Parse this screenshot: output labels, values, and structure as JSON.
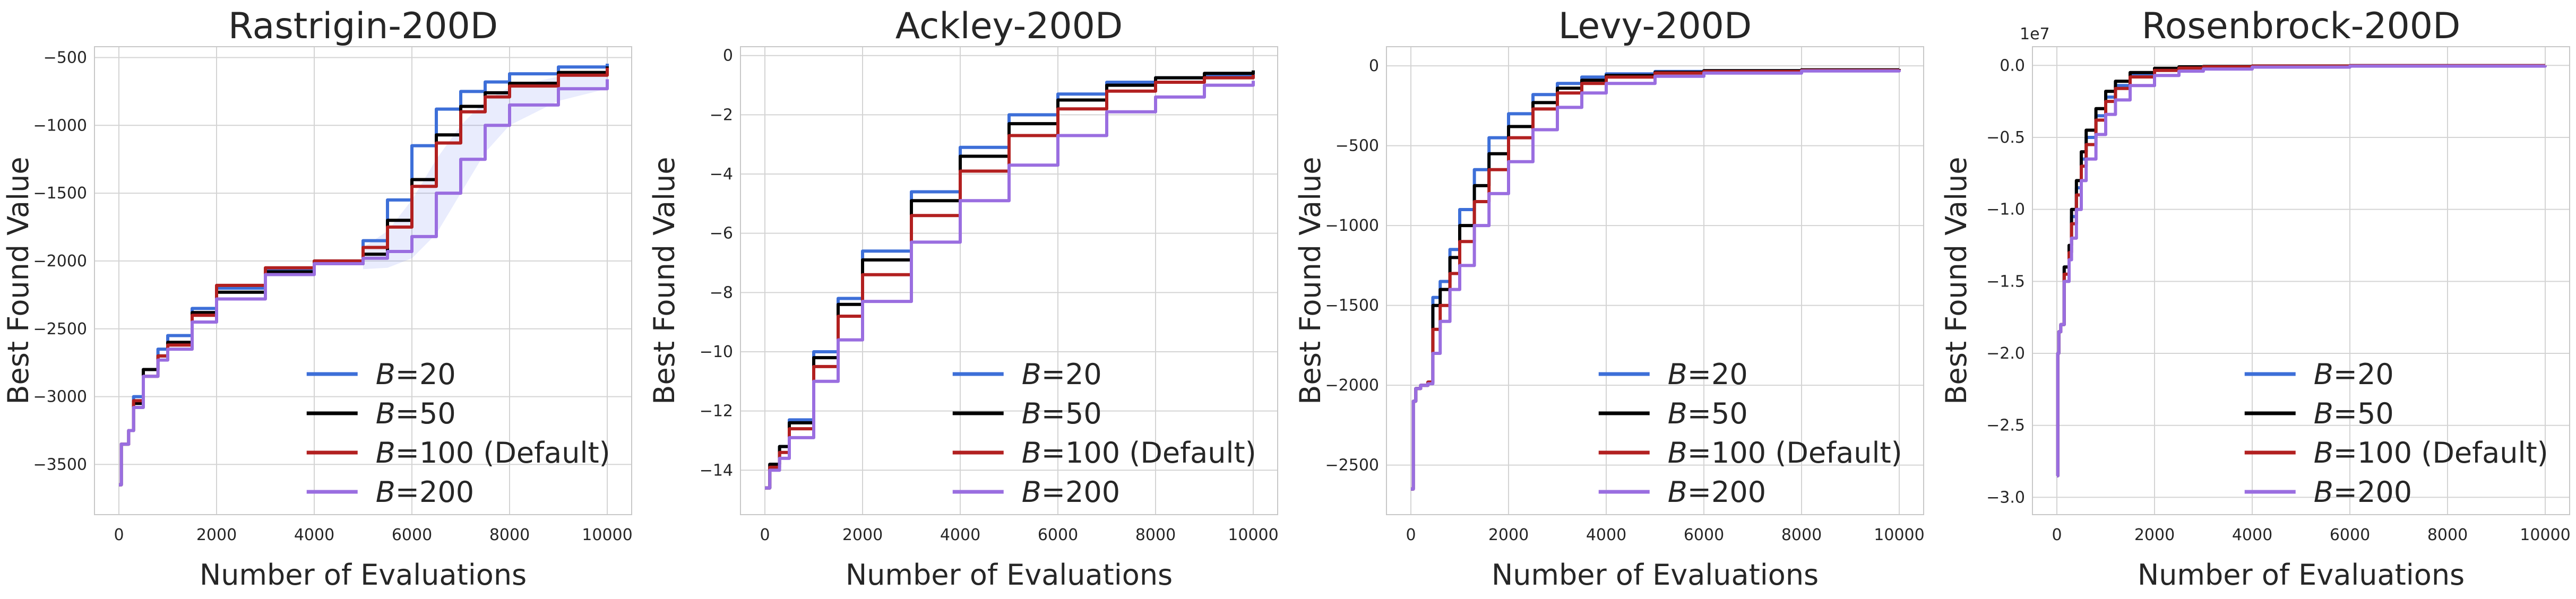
{
  "colors": {
    "B20": "#3d6fd8",
    "B50": "#000000",
    "B100": "#b22020",
    "B200": "#9a6ee0",
    "band": "#6d82f0",
    "grid": "#d4d4d4",
    "frame": "#c8c8c8"
  },
  "legend": [
    {
      "key": "B20",
      "var": "B",
      "text": "=20"
    },
    {
      "key": "B50",
      "var": "B",
      "text": "=50"
    },
    {
      "key": "B100",
      "var": "B",
      "text": "=100 (Default)"
    },
    {
      "key": "B200",
      "var": "B",
      "text": "=200"
    }
  ],
  "chart_data": [
    {
      "type": "line",
      "title": "Rastrigin-200D",
      "xlabel": "Number of Evaluations",
      "ylabel": "Best Found Value",
      "xlim": [
        -500,
        10500
      ],
      "ylim": [
        -3870,
        -420
      ],
      "xticks": [
        0,
        2000,
        4000,
        6000,
        8000,
        10000
      ],
      "xtick_labels": [
        "0",
        "2000",
        "4000",
        "6000",
        "8000",
        "10000"
      ],
      "yticks": [
        -3500,
        -3000,
        -2500,
        -2000,
        -1500,
        -1000,
        -500
      ],
      "ytick_labels": [
        "−3500",
        "−3000",
        "−2500",
        "−2000",
        "−1500",
        "−1000",
        "−500"
      ],
      "offset_text": "",
      "legend_loc": "lower-right",
      "series": [
        {
          "name": "B=20",
          "key": "B20",
          "x": [
            0,
            50,
            200,
            300,
            500,
            800,
            1000,
            1500,
            2000,
            3000,
            4000,
            5000,
            5500,
            6000,
            6500,
            7000,
            7500,
            8000,
            9000,
            10000
          ],
          "y": [
            -3650,
            -3350,
            -3250,
            -3000,
            -2800,
            -2650,
            -2550,
            -2350,
            -2200,
            -2060,
            -2000,
            -1850,
            -1550,
            -1150,
            -880,
            -750,
            -680,
            -620,
            -570,
            -545
          ]
        },
        {
          "name": "B=50",
          "key": "B50",
          "x": [
            0,
            50,
            200,
            300,
            500,
            800,
            1000,
            1500,
            2000,
            3000,
            4000,
            5000,
            5500,
            6000,
            6500,
            7000,
            7500,
            8000,
            9000,
            10000
          ],
          "y": [
            -3650,
            -3350,
            -3250,
            -3050,
            -2800,
            -2700,
            -2600,
            -2380,
            -2230,
            -2080,
            -2020,
            -1950,
            -1700,
            -1400,
            -1070,
            -860,
            -760,
            -690,
            -610,
            -565
          ]
        },
        {
          "name": "B=100 (Default)",
          "key": "B100",
          "x": [
            0,
            50,
            200,
            300,
            500,
            800,
            1000,
            1500,
            2000,
            3000,
            4000,
            5000,
            5500,
            6000,
            6500,
            7000,
            7500,
            8000,
            9000,
            10000
          ],
          "y": [
            -3650,
            -3350,
            -3250,
            -3030,
            -2850,
            -2700,
            -2620,
            -2400,
            -2180,
            -2050,
            -2000,
            -1900,
            -1750,
            -1450,
            -1130,
            -900,
            -790,
            -710,
            -630,
            -575
          ]
        },
        {
          "name": "B=200",
          "key": "B200",
          "x": [
            0,
            50,
            200,
            300,
            500,
            800,
            1000,
            1500,
            2000,
            3000,
            4000,
            5000,
            5500,
            6000,
            6500,
            7000,
            7500,
            8000,
            9000,
            10000
          ],
          "y": [
            -3650,
            -3350,
            -3250,
            -3080,
            -2850,
            -2730,
            -2650,
            -2450,
            -2280,
            -2100,
            -2020,
            -1980,
            -1930,
            -1820,
            -1500,
            -1250,
            -1000,
            -850,
            -730,
            -660
          ]
        }
      ],
      "band": {
        "key": "B200",
        "x": [
          5000,
          5500,
          6000,
          6500,
          7000,
          7500,
          8000,
          9000,
          10000
        ],
        "lower": [
          -2060,
          -2050,
          -1980,
          -1800,
          -1500,
          -1200,
          -1000,
          -820,
          -730
        ],
        "upper": [
          -1900,
          -1780,
          -1550,
          -1250,
          -1000,
          -820,
          -720,
          -640,
          -600
        ]
      }
    },
    {
      "type": "line",
      "title": "Ackley-200D",
      "xlabel": "Number of Evaluations",
      "ylabel": "Best Found Value",
      "xlim": [
        -500,
        10500
      ],
      "ylim": [
        -15.5,
        0.3
      ],
      "xticks": [
        0,
        2000,
        4000,
        6000,
        8000,
        10000
      ],
      "xtick_labels": [
        "0",
        "2000",
        "4000",
        "6000",
        "8000",
        "10000"
      ],
      "yticks": [
        -14,
        -12,
        -10,
        -8,
        -6,
        -4,
        -2,
        0
      ],
      "ytick_labels": [
        "−14",
        "−12",
        "−10",
        "−8",
        "−6",
        "−4",
        "−2",
        "0"
      ],
      "offset_text": "",
      "legend_loc": "lower-right",
      "series": [
        {
          "name": "B=20",
          "key": "B20",
          "x": [
            0,
            100,
            300,
            500,
            1000,
            1500,
            2000,
            3000,
            4000,
            5000,
            6000,
            7000,
            8000,
            9000,
            10000
          ],
          "y": [
            -14.6,
            -13.8,
            -13.2,
            -12.3,
            -10.0,
            -8.2,
            -6.6,
            -4.6,
            -3.1,
            -2.0,
            -1.3,
            -0.9,
            -0.75,
            -0.65,
            -0.6
          ]
        },
        {
          "name": "B=50",
          "key": "B50",
          "x": [
            0,
            100,
            300,
            500,
            1000,
            1500,
            2000,
            3000,
            4000,
            5000,
            6000,
            7000,
            8000,
            9000,
            10000
          ],
          "y": [
            -14.6,
            -13.8,
            -13.2,
            -12.4,
            -10.2,
            -8.4,
            -6.9,
            -4.9,
            -3.4,
            -2.3,
            -1.5,
            -1.0,
            -0.75,
            -0.6,
            -0.5
          ]
        },
        {
          "name": "B=100 (Default)",
          "key": "B100",
          "x": [
            0,
            100,
            300,
            500,
            1000,
            1500,
            2000,
            3000,
            4000,
            5000,
            6000,
            7000,
            8000,
            9000,
            10000
          ],
          "y": [
            -14.6,
            -13.9,
            -13.4,
            -12.6,
            -10.5,
            -8.8,
            -7.4,
            -5.4,
            -3.9,
            -2.7,
            -1.8,
            -1.2,
            -0.9,
            -0.75,
            -0.65
          ]
        },
        {
          "name": "B=200",
          "key": "B200",
          "x": [
            0,
            100,
            300,
            500,
            1000,
            1500,
            2000,
            3000,
            4000,
            5000,
            6000,
            7000,
            8000,
            9000,
            10000
          ],
          "y": [
            -14.6,
            -14.0,
            -13.6,
            -12.9,
            -11.0,
            -9.6,
            -8.3,
            -6.3,
            -4.9,
            -3.7,
            -2.7,
            -1.9,
            -1.4,
            -1.0,
            -0.85
          ]
        }
      ]
    },
    {
      "type": "line",
      "title": "Levy-200D",
      "xlabel": "Number of Evaluations",
      "ylabel": "Best Found Value",
      "xlim": [
        -500,
        10500
      ],
      "ylim": [
        -2810,
        120
      ],
      "xticks": [
        0,
        2000,
        4000,
        6000,
        8000,
        10000
      ],
      "xtick_labels": [
        "0",
        "2000",
        "4000",
        "6000",
        "8000",
        "10000"
      ],
      "yticks": [
        -2500,
        -2000,
        -1500,
        -1000,
        -500,
        0
      ],
      "ytick_labels": [
        "−2500",
        "−2000",
        "−1500",
        "−1000",
        "−500",
        "0"
      ],
      "offset_text": "",
      "legend_loc": "lower-right",
      "series": [
        {
          "name": "B=20",
          "key": "B20",
          "x": [
            0,
            50,
            100,
            200,
            350,
            450,
            600,
            800,
            1000,
            1300,
            1600,
            2000,
            2500,
            3000,
            3500,
            4000,
            5000,
            6000,
            8000,
            10000
          ],
          "y": [
            -2650,
            -2100,
            -2020,
            -2000,
            -1980,
            -1450,
            -1350,
            -1150,
            -900,
            -650,
            -450,
            -300,
            -180,
            -110,
            -70,
            -50,
            -35,
            -30,
            -25,
            -20
          ]
        },
        {
          "name": "B=50",
          "key": "B50",
          "x": [
            0,
            50,
            100,
            200,
            350,
            450,
            600,
            800,
            1000,
            1300,
            1600,
            2000,
            2500,
            3000,
            3500,
            4000,
            5000,
            6000,
            8000,
            10000
          ],
          "y": [
            -2650,
            -2100,
            -2020,
            -2000,
            -1980,
            -1500,
            -1400,
            -1200,
            -1000,
            -750,
            -550,
            -380,
            -230,
            -140,
            -90,
            -60,
            -40,
            -30,
            -25,
            -20
          ]
        },
        {
          "name": "B=100 (Default)",
          "key": "B100",
          "x": [
            0,
            50,
            100,
            200,
            350,
            450,
            600,
            800,
            1000,
            1300,
            1600,
            2000,
            2500,
            3000,
            3500,
            4000,
            5000,
            6000,
            8000,
            10000
          ],
          "y": [
            -2650,
            -2100,
            -2020,
            -2000,
            -1980,
            -1650,
            -1500,
            -1300,
            -1100,
            -850,
            -650,
            -450,
            -270,
            -170,
            -110,
            -70,
            -45,
            -35,
            -28,
            -22
          ]
        },
        {
          "name": "B=200",
          "key": "B200",
          "x": [
            0,
            50,
            100,
            200,
            350,
            450,
            600,
            800,
            1000,
            1300,
            1600,
            2000,
            2500,
            3000,
            3500,
            4000,
            5000,
            6000,
            8000,
            10000
          ],
          "y": [
            -2650,
            -2100,
            -2020,
            -2000,
            -1990,
            -1800,
            -1600,
            -1400,
            -1250,
            -1000,
            -800,
            -600,
            -400,
            -260,
            -170,
            -110,
            -65,
            -45,
            -32,
            -25
          ]
        }
      ]
    },
    {
      "type": "line",
      "title": "Rosenbrock-200D",
      "xlabel": "Number of Evaluations",
      "ylabel": "Best Found Value",
      "xlim": [
        -500,
        10500
      ],
      "ylim": [
        -3.12,
        0.13
      ],
      "xticks": [
        0,
        2000,
        4000,
        6000,
        8000,
        10000
      ],
      "xtick_labels": [
        "0",
        "2000",
        "4000",
        "6000",
        "8000",
        "10000"
      ],
      "yticks": [
        -3.0,
        -2.5,
        -2.0,
        -1.5,
        -1.0,
        -0.5,
        0.0
      ],
      "ytick_labels": [
        "−3.0",
        "−2.5",
        "−2.0",
        "−1.5",
        "−1.0",
        "−0.5",
        "0.0"
      ],
      "offset_text": "1e7",
      "legend_loc": "lower-right",
      "series": [
        {
          "name": "B=20",
          "key": "B20",
          "x": [
            0,
            20,
            40,
            80,
            150,
            250,
            300,
            400,
            500,
            600,
            800,
            1000,
            1200,
            1500,
            2000,
            2500,
            3000,
            4000,
            6000,
            10000
          ],
          "y": [
            -2.85,
            -2.0,
            -1.85,
            -1.8,
            -1.4,
            -1.3,
            -1.05,
            -0.85,
            -0.65,
            -0.5,
            -0.35,
            -0.22,
            -0.14,
            -0.07,
            -0.03,
            -0.015,
            -0.01,
            -0.005,
            -0.002,
            -0.001
          ]
        },
        {
          "name": "B=50",
          "key": "B50",
          "x": [
            0,
            20,
            40,
            80,
            150,
            250,
            300,
            400,
            500,
            600,
            800,
            1000,
            1200,
            1500,
            2000,
            2500,
            3000,
            4000,
            6000,
            10000
          ],
          "y": [
            -2.85,
            -2.0,
            -1.85,
            -1.8,
            -1.4,
            -1.25,
            -1.0,
            -0.8,
            -0.6,
            -0.45,
            -0.3,
            -0.18,
            -0.11,
            -0.05,
            -0.02,
            -0.01,
            -0.007,
            -0.004,
            -0.002,
            -0.001
          ]
        },
        {
          "name": "B=100 (Default)",
          "key": "B100",
          "x": [
            0,
            20,
            40,
            80,
            150,
            250,
            300,
            400,
            500,
            600,
            800,
            1000,
            1200,
            1500,
            2000,
            2500,
            3000,
            4000,
            6000,
            10000
          ],
          "y": [
            -2.85,
            -2.0,
            -1.85,
            -1.8,
            -1.45,
            -1.3,
            -1.1,
            -0.9,
            -0.7,
            -0.55,
            -0.38,
            -0.25,
            -0.16,
            -0.08,
            -0.035,
            -0.018,
            -0.01,
            -0.005,
            -0.002,
            -0.001
          ]
        },
        {
          "name": "B=200",
          "key": "B200",
          "x": [
            0,
            20,
            40,
            80,
            150,
            250,
            300,
            400,
            500,
            600,
            800,
            1000,
            1200,
            1500,
            2000,
            2500,
            3000,
            4000,
            6000,
            10000
          ],
          "y": [
            -2.85,
            -2.0,
            -1.85,
            -1.8,
            -1.5,
            -1.35,
            -1.2,
            -1.0,
            -0.8,
            -0.65,
            -0.48,
            -0.34,
            -0.24,
            -0.14,
            -0.07,
            -0.04,
            -0.025,
            -0.012,
            -0.005,
            -0.002
          ]
        }
      ]
    }
  ]
}
